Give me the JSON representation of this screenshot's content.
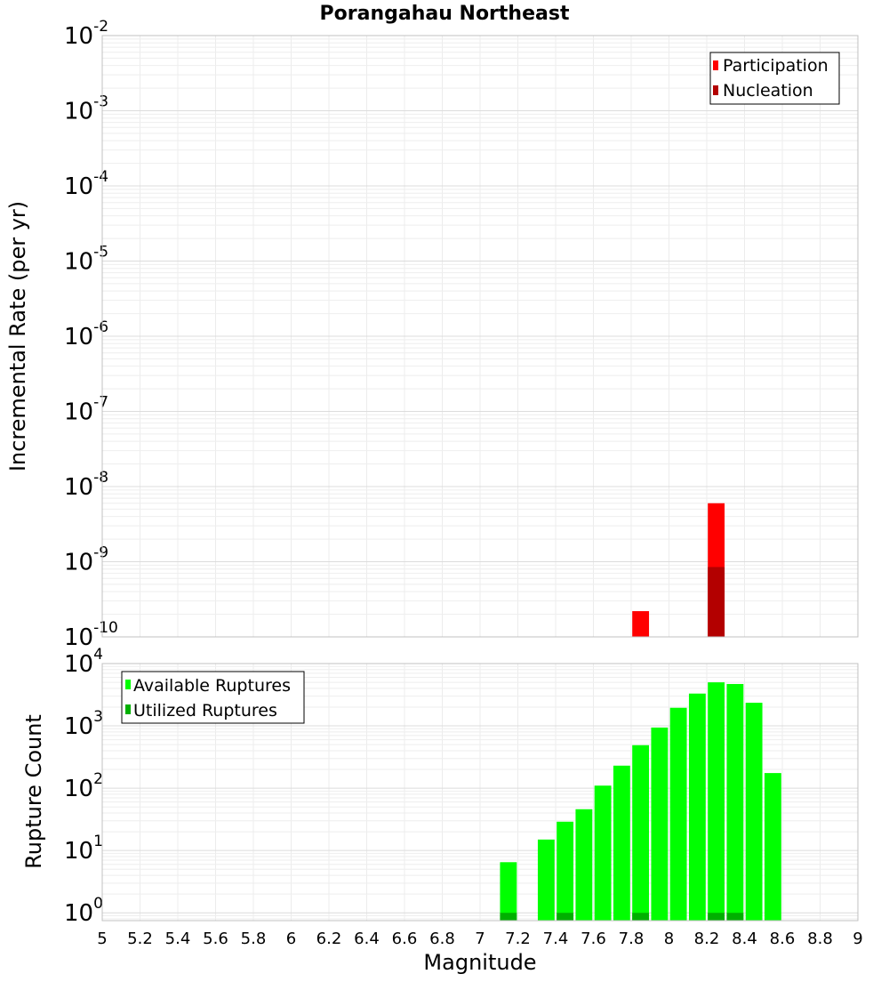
{
  "chart_data": [
    {
      "type": "bar",
      "title": "Porangahau Northeast",
      "xlabel": "Magnitude",
      "ylabel": "Incremental Rate (per yr)",
      "yscale": "log",
      "ylim": [
        1e-10,
        0.01
      ],
      "xlim": [
        5,
        9
      ],
      "bin_width": 0.1,
      "ytick_labels": [
        {
          "base": "10",
          "exp": "-10",
          "value": 1e-10
        },
        {
          "base": "10",
          "exp": "-9",
          "value": 1e-09
        },
        {
          "base": "10",
          "exp": "-8",
          "value": 1e-08
        },
        {
          "base": "10",
          "exp": "-7",
          "value": 1e-07
        },
        {
          "base": "10",
          "exp": "-6",
          "value": 1e-06
        },
        {
          "base": "10",
          "exp": "-5",
          "value": 1e-05
        },
        {
          "base": "10",
          "exp": "-4",
          "value": 0.0001
        },
        {
          "base": "10",
          "exp": "-3",
          "value": 0.001
        },
        {
          "base": "10",
          "exp": "-2",
          "value": 0.01
        }
      ],
      "legend": {
        "position": "top-right",
        "entries": [
          "Participation",
          "Nucleation"
        ]
      },
      "series": [
        {
          "name": "Participation",
          "color": "#ff0000",
          "x": [
            7.85,
            8.25
          ],
          "values": [
            2.2e-10,
            6e-09
          ]
        },
        {
          "name": "Nucleation",
          "color": "#b30000",
          "x": [
            8.25
          ],
          "values": [
            8.5e-10
          ]
        }
      ]
    },
    {
      "type": "bar",
      "title": "",
      "xlabel": "Magnitude",
      "ylabel": "Rupture Count",
      "yscale": "log",
      "ylim": [
        0.75,
        10000
      ],
      "xlim": [
        5,
        9
      ],
      "bin_width": 0.1,
      "xticks": [
        "5",
        "5.2",
        "5.4",
        "5.6",
        "5.8",
        "6",
        "6.2",
        "6.4",
        "6.6",
        "6.8",
        "7",
        "7.2",
        "7.4",
        "7.6",
        "7.8",
        "8",
        "8.2",
        "8.4",
        "8.6",
        "8.8",
        "9"
      ],
      "ytick_labels": [
        {
          "base": "10",
          "exp": "0",
          "value": 1
        },
        {
          "base": "10",
          "exp": "1",
          "value": 10
        },
        {
          "base": "10",
          "exp": "2",
          "value": 100
        },
        {
          "base": "10",
          "exp": "3",
          "value": 1000
        },
        {
          "base": "10",
          "exp": "4",
          "value": 10000
        }
      ],
      "legend": {
        "position": "top-left",
        "entries": [
          "Available Ruptures",
          "Utilized Ruptures"
        ]
      },
      "series": [
        {
          "name": "Available Ruptures",
          "color": "#00ff00",
          "x": [
            7.15,
            7.35,
            7.45,
            7.55,
            7.65,
            7.75,
            7.85,
            7.95,
            8.05,
            8.15,
            8.25,
            8.35,
            8.45,
            8.55
          ],
          "values": [
            6.5,
            15,
            29,
            46,
            110,
            230,
            490,
            940,
            1950,
            3300,
            5000,
            4700,
            2350,
            175
          ]
        },
        {
          "name": "Utilized Ruptures",
          "color": "#00b000",
          "x": [
            7.15,
            7.45,
            7.85,
            8.25,
            8.35
          ],
          "values": [
            1,
            1,
            1,
            1,
            1
          ]
        }
      ]
    }
  ]
}
